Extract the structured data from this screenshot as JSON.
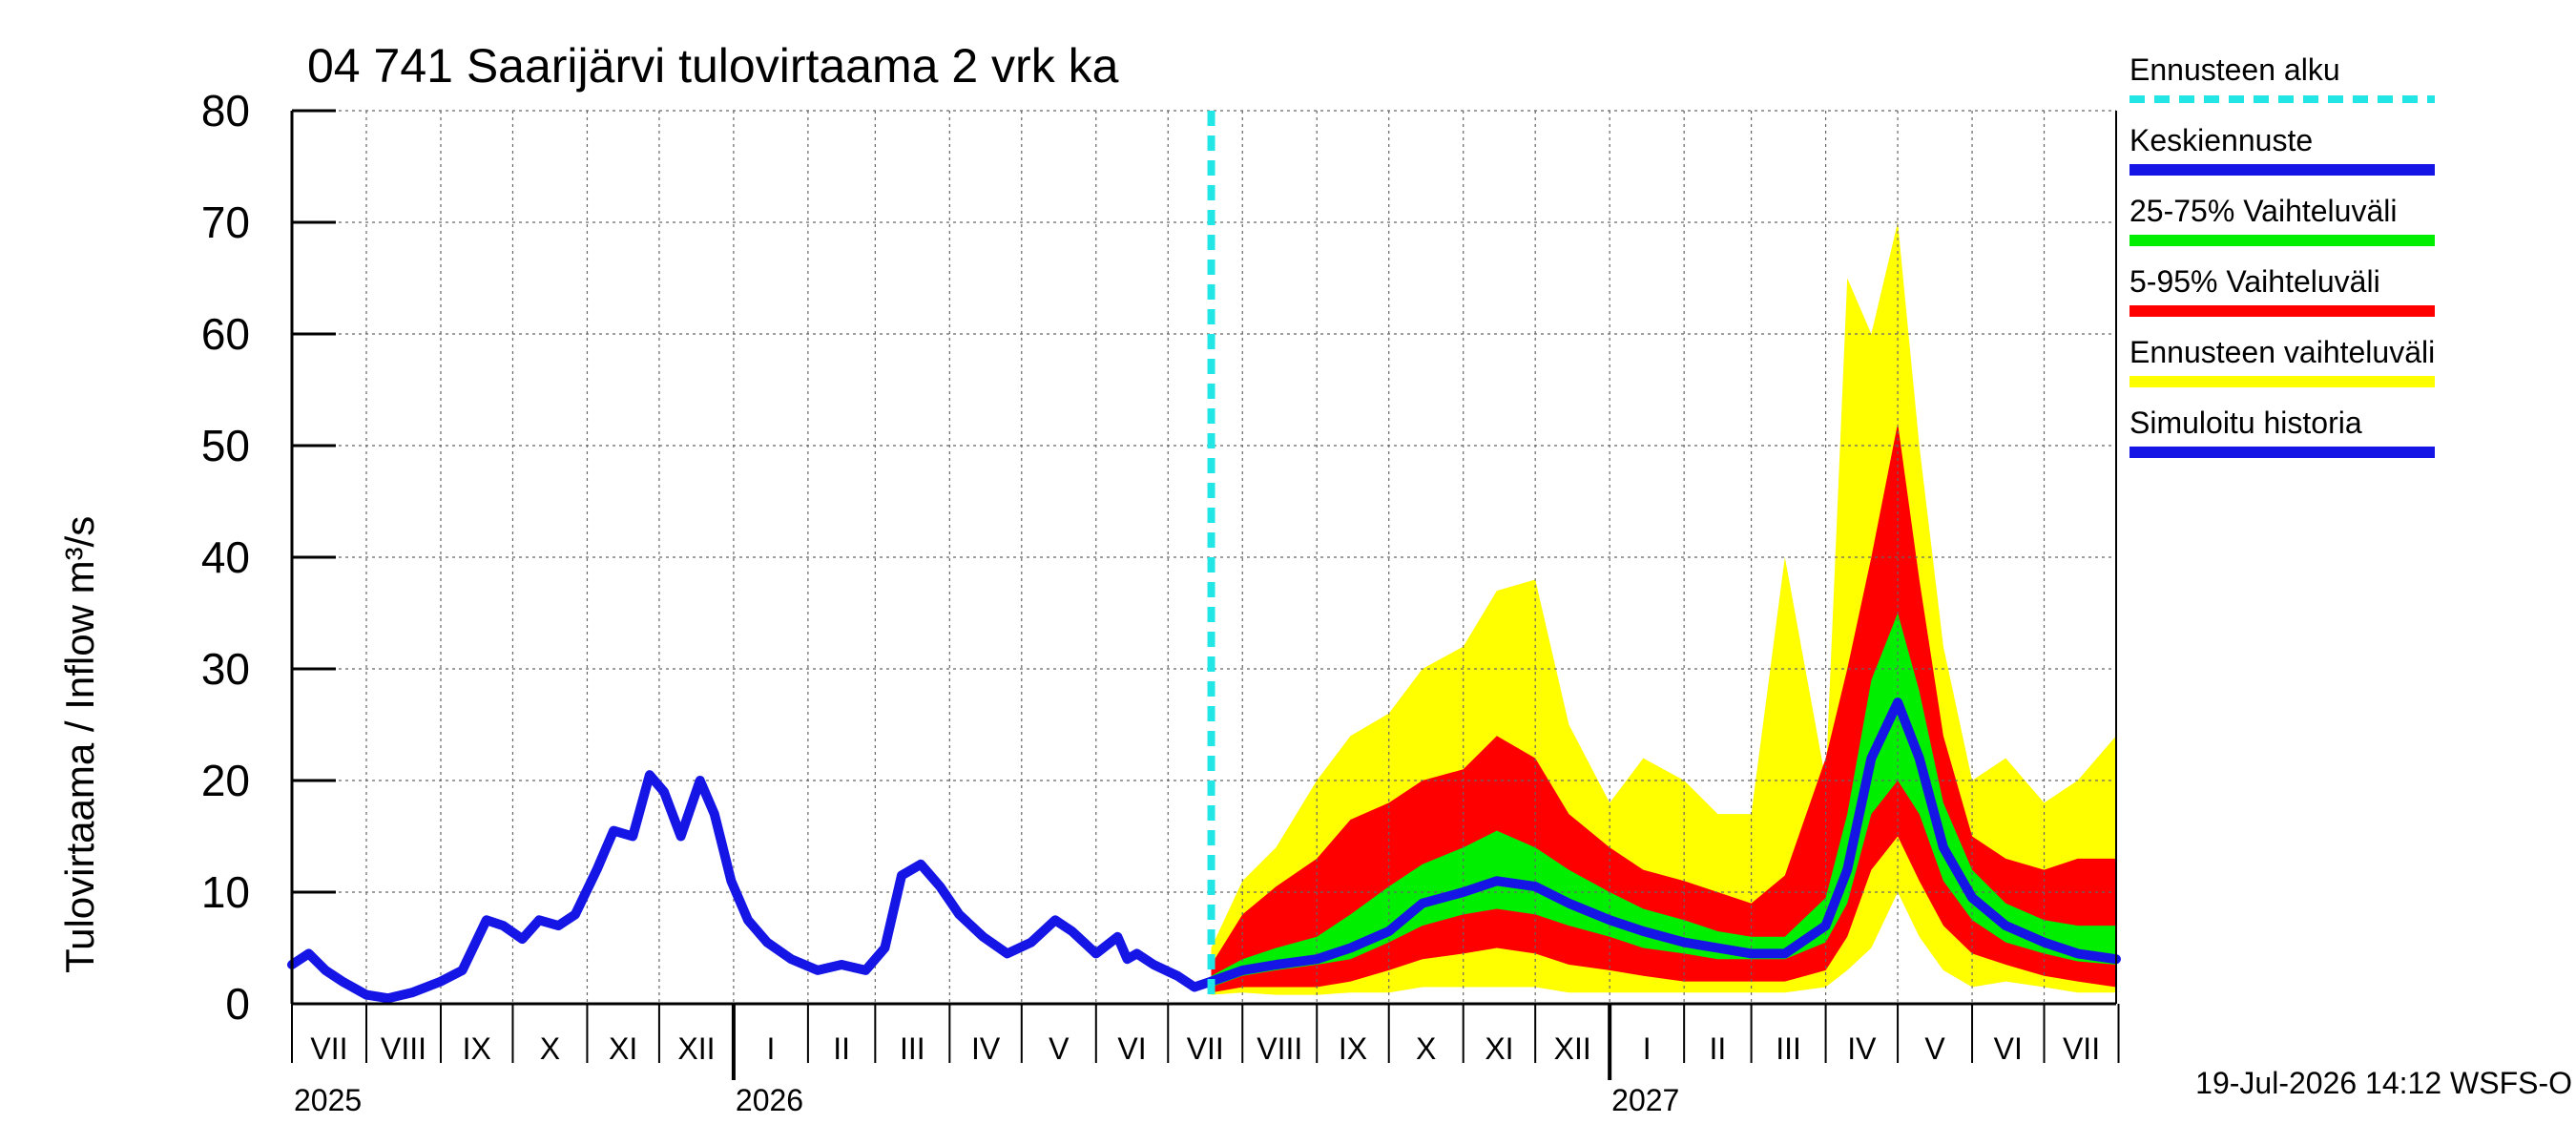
{
  "colors": {
    "forecast_start": "#22e6e6",
    "mean": "#1515e6",
    "band_25_75": "#00ee00",
    "band_5_95": "#ff0000",
    "band_full": "#ffff00",
    "history": "#1515e6",
    "grid": "#666666"
  },
  "chart_data": {
    "type": "area",
    "title": "04 741 Saarijärvi tulovirtaama 2 vrk ka",
    "ylabel": "Tulovirtaama / Inflow    m³/s",
    "ylim": [
      0,
      80
    ],
    "yticks": [
      "0",
      "10",
      "20",
      "30",
      "40",
      "50",
      "60",
      "70",
      "80"
    ],
    "x_range": [
      "2025-07-01",
      "2027-07-31"
    ],
    "month_labels": [
      "VII",
      "VIII",
      "IX",
      "X",
      "XI",
      "XII",
      "I",
      "II",
      "III",
      "IV",
      "V",
      "VI",
      "VII",
      "VIII",
      "IX",
      "X",
      "XI",
      "XII",
      "I",
      "II",
      "III",
      "IV",
      "V",
      "VI",
      "VII"
    ],
    "year_labels": [
      "2025",
      "2026",
      "2027"
    ],
    "forecast_start": "2026-07-19",
    "footer": "19-Jul-2026 14:12 WSFS-O",
    "legend": [
      {
        "label": "Ennusteen alku",
        "key": "forecast_start",
        "style": "dashed"
      },
      {
        "label": "Keskiennuste",
        "key": "mean",
        "style": "line"
      },
      {
        "label": "25-75% Vaihteluväli",
        "key": "band_25_75",
        "style": "line"
      },
      {
        "label": "5-95% Vaihteluväli",
        "key": "band_5_95",
        "style": "line"
      },
      {
        "label": "Ennusteen vaihteluväli",
        "key": "band_full",
        "style": "line"
      },
      {
        "label": "Simuloitu historia",
        "key": "history",
        "style": "line"
      }
    ],
    "history": {
      "name": "Simuloitu historia",
      "x": [
        "2025-07-01",
        "2025-07-08",
        "2025-07-15",
        "2025-07-22",
        "2025-08-01",
        "2025-08-10",
        "2025-08-20",
        "2025-09-01",
        "2025-09-10",
        "2025-09-20",
        "2025-09-27",
        "2025-10-05",
        "2025-10-12",
        "2025-10-20",
        "2025-10-27",
        "2025-11-05",
        "2025-11-12",
        "2025-11-20",
        "2025-11-27",
        "2025-12-03",
        "2025-12-10",
        "2025-12-18",
        "2025-12-24",
        "2025-12-31",
        "2026-01-07",
        "2026-01-15",
        "2026-01-25",
        "2026-02-05",
        "2026-02-15",
        "2026-02-25",
        "2026-03-05",
        "2026-03-12",
        "2026-03-20",
        "2026-03-28",
        "2026-04-05",
        "2026-04-15",
        "2026-04-25",
        "2026-05-05",
        "2026-05-15",
        "2026-05-22",
        "2026-06-01",
        "2026-06-10",
        "2026-06-14",
        "2026-06-18",
        "2026-06-25",
        "2026-07-05",
        "2026-07-12",
        "2026-07-19"
      ],
      "y": [
        3.5,
        4.5,
        3.0,
        2.0,
        0.8,
        0.5,
        1.0,
        2.0,
        3.0,
        7.5,
        7.0,
        5.8,
        7.5,
        7.0,
        8.0,
        12.0,
        15.5,
        15.0,
        20.5,
        19.0,
        15.0,
        20.0,
        17.0,
        11.0,
        7.5,
        5.5,
        4.0,
        3.0,
        3.5,
        3.0,
        5.0,
        11.5,
        12.5,
        10.5,
        8.0,
        6.0,
        4.5,
        5.5,
        7.5,
        6.5,
        4.5,
        6.0,
        4.0,
        4.5,
        3.5,
        2.5,
        1.5,
        2.0
      ]
    },
    "forecast": {
      "x": [
        "2026-07-19",
        "2026-08-01",
        "2026-08-15",
        "2026-09-01",
        "2026-09-15",
        "2026-10-01",
        "2026-10-15",
        "2026-11-01",
        "2026-11-15",
        "2026-12-01",
        "2026-12-15",
        "2027-01-01",
        "2027-01-15",
        "2027-02-01",
        "2027-02-15",
        "2027-03-01",
        "2027-03-15",
        "2027-04-01",
        "2027-04-10",
        "2027-04-20",
        "2027-05-01",
        "2027-05-10",
        "2027-05-20",
        "2027-06-01",
        "2027-06-15",
        "2027-07-01",
        "2027-07-15",
        "2027-07-31"
      ],
      "mean": [
        2.0,
        3.0,
        3.5,
        4.0,
        5.0,
        6.5,
        9.0,
        10.0,
        11.0,
        10.5,
        9.0,
        7.5,
        6.5,
        5.5,
        5.0,
        4.5,
        4.5,
        7.0,
        12.0,
        22.0,
        27.0,
        22.0,
        14.0,
        9.5,
        7.0,
        5.5,
        4.5,
        4.0
      ],
      "p25": [
        1.5,
        2.5,
        3.0,
        3.5,
        4.0,
        5.5,
        7.0,
        8.0,
        8.5,
        8.0,
        7.0,
        6.0,
        5.0,
        4.5,
        4.0,
        4.0,
        4.0,
        5.5,
        9.0,
        17.0,
        20.0,
        17.0,
        11.0,
        7.5,
        5.5,
        4.5,
        3.8,
        3.5
      ],
      "p75": [
        2.5,
        4.0,
        5.0,
        6.0,
        8.0,
        10.5,
        12.5,
        14.0,
        15.5,
        14.0,
        12.0,
        10.0,
        8.5,
        7.5,
        6.5,
        6.0,
        6.0,
        9.5,
        17.0,
        29.0,
        35.0,
        28.0,
        18.0,
        12.0,
        9.0,
        7.5,
        7.0,
        7.0
      ],
      "p5": [
        1.0,
        1.5,
        1.5,
        1.5,
        2.0,
        3.0,
        4.0,
        4.5,
        5.0,
        4.5,
        3.5,
        3.0,
        2.5,
        2.0,
        2.0,
        2.0,
        2.0,
        3.0,
        6.0,
        12.0,
        15.0,
        11.0,
        7.0,
        4.5,
        3.5,
        2.5,
        2.0,
        1.5
      ],
      "p95": [
        3.5,
        8.0,
        10.5,
        13.0,
        16.5,
        18.0,
        20.0,
        21.0,
        24.0,
        22.0,
        17.0,
        14.0,
        12.0,
        11.0,
        10.0,
        9.0,
        11.5,
        22.0,
        30.0,
        40.0,
        52.0,
        38.0,
        24.0,
        15.0,
        13.0,
        12.0,
        13.0,
        13.0
      ],
      "min": [
        0.8,
        1.0,
        0.8,
        0.8,
        1.0,
        1.0,
        1.5,
        1.5,
        1.5,
        1.5,
        1.0,
        1.0,
        1.0,
        1.0,
        1.0,
        1.0,
        1.0,
        1.5,
        3.0,
        5.0,
        10.0,
        6.0,
        3.0,
        1.5,
        2.0,
        1.5,
        1.0,
        1.0
      ],
      "max": [
        5.0,
        11.0,
        14.0,
        20.0,
        24.0,
        26.0,
        30.0,
        32.0,
        37.0,
        38.0,
        25.0,
        18.0,
        22.0,
        20.0,
        17.0,
        17.0,
        40.0,
        20.0,
        65.0,
        60.0,
        70.0,
        50.0,
        32.0,
        20.0,
        22.0,
        18.0,
        20.0,
        24.0
      ]
    }
  }
}
